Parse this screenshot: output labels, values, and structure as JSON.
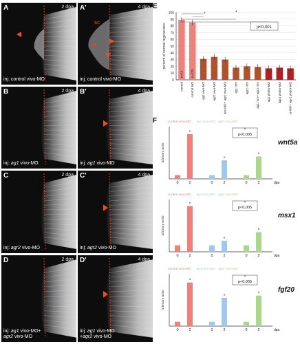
{
  "panels": [
    {
      "label": "A",
      "dpa": "2 dpa",
      "inj": [
        "inj: control vivo-MO"
      ],
      "variant": "control2"
    },
    {
      "label": "A'",
      "dpa": "4 dpa",
      "inj": [
        "inj: control vivo-MO"
      ],
      "variant": "control4"
    },
    {
      "label": "B",
      "dpa": "2 dpa",
      "inj": [
        "inj: ag1 vivo-MO"
      ],
      "variant": "kd2"
    },
    {
      "label": "B'",
      "dpa": "4 dpa",
      "inj": [
        "inj: ag1 vivo-MO"
      ],
      "variant": "kd4"
    },
    {
      "label": "C",
      "dpa": "2 dpa",
      "inj": [
        "inj: agr2 vivo-MO"
      ],
      "variant": "kd2"
    },
    {
      "label": "C'",
      "dpa": "4 dpa",
      "inj": [
        "inj: agr2 vivo-MO"
      ],
      "variant": "kd4"
    },
    {
      "label": "D",
      "dpa": "2 dpa",
      "inj": [
        "inj: ag1 vivo-MO+",
        "agr2 vivo-MO"
      ],
      "variant": "kd2"
    },
    {
      "label": "D'",
      "dpa": "4 dpa",
      "inj": [
        "inj: ag1 vivo-MO",
        "+agr2 vivo-MO"
      ],
      "variant": "kd4"
    }
  ],
  "annotations": {
    "sc": "sc",
    "m": "m"
  },
  "colors": {
    "red": "#f08078",
    "brown": "#b0522a",
    "darkred": "#b02020",
    "blue": "#9ec8ee",
    "green": "#a8d888",
    "arrow": "#e8501a"
  },
  "panelE": {
    "letter": "E",
    "ylabel": "percent of normal regenerates",
    "sig": "p<0,001",
    "chart_data": {
      "type": "bar",
      "ylim": [
        0,
        100
      ],
      "yticks": [
        0,
        10,
        20,
        30,
        40,
        50,
        60,
        70,
        80,
        90,
        100
      ],
      "categories": [
        "control",
        "control MO",
        "ag1 vivo-MO",
        "agr2 vivo-MO",
        "ag1 vivo-MO+ agr2 vivo-MO",
        "ag1 mm",
        "agr2 mm",
        "ag1 mm+ agr2 mm",
        "ag1 photo-MO",
        "agr2 photo-MO",
        "ag1 photo-MO+ agr2 photo-MO"
      ],
      "values": [
        89,
        85,
        31,
        34,
        30,
        18,
        20,
        19,
        17,
        18,
        17
      ],
      "counts": [
        "n=54",
        "n=225",
        "",
        "",
        "",
        "",
        "",
        "",
        "",
        "",
        ""
      ]
    }
  },
  "panelF": {
    "letter": "F",
    "legend": [
      "control vivo-MO",
      "ag1 vivo-MO",
      "agr2 vivo-MO"
    ],
    "dpa": "dpa",
    "ylabel": "arbitrary units",
    "charts": [
      {
        "gene": "wnt5a",
        "sig": "p<0,005",
        "chart_data": {
          "type": "bar",
          "series": [
            {
              "name": "control vivo-MO",
              "x": [
                "0",
                "2"
              ],
              "values": [
                1,
                12
              ]
            },
            {
              "name": "ag1 vivo-MO",
              "x": [
                "0",
                "2"
              ],
              "values": [
                1,
                5
              ]
            },
            {
              "name": "agr2 vivo-MO",
              "x": [
                "0",
                "2"
              ],
              "values": [
                1,
                6
              ]
            }
          ]
        }
      },
      {
        "gene": "msx1",
        "sig": "p<0,005",
        "chart_data": {
          "type": "bar",
          "series": [
            {
              "name": "control vivo-MO",
              "x": [
                "0",
                "2"
              ],
              "values": [
                1,
                7
              ]
            },
            {
              "name": "ag1 vivo-MO",
              "x": [
                "0",
                "2"
              ],
              "values": [
                1,
                1.7
              ]
            },
            {
              "name": "agr2 vivo-MO",
              "x": [
                "0",
                "2"
              ],
              "values": [
                1,
                3
              ]
            }
          ]
        }
      },
      {
        "gene": "fgf20",
        "sig": "p<0,005",
        "chart_data": {
          "type": "bar",
          "series": [
            {
              "name": "control vivo-MO",
              "x": [
                "0",
                "2"
              ],
              "values": [
                1,
                10
              ]
            },
            {
              "name": "ag1 vivo-MO",
              "x": [
                "0",
                "2"
              ],
              "values": [
                1,
                6.5
              ]
            },
            {
              "name": "agr2 vivo-MO",
              "x": [
                "0",
                "2"
              ],
              "values": [
                1,
                7
              ]
            }
          ]
        }
      }
    ]
  }
}
